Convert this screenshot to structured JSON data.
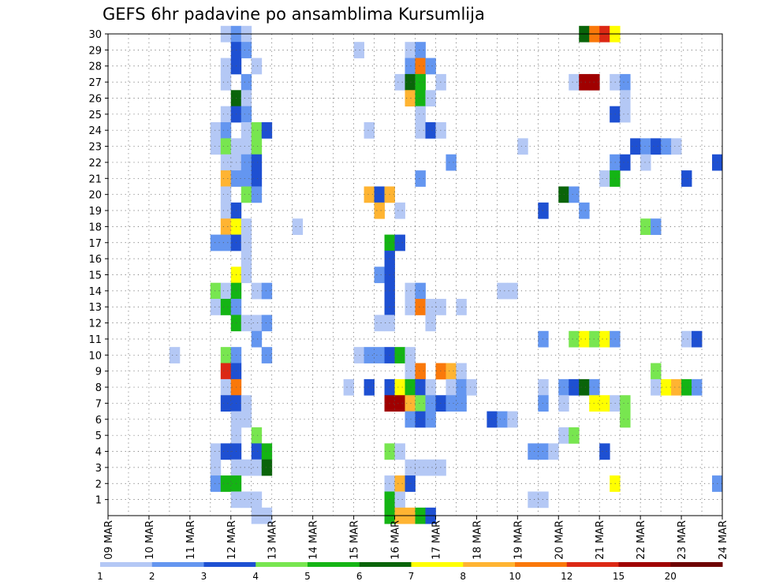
{
  "chart_data": {
    "type": "heatmap",
    "title": "GEFS 6hr padavine po ansamblima Kursumlija",
    "x_tick_labels": [
      "09 MAR",
      "10 MAR",
      "11 MAR",
      "12 MAR",
      "13 MAR",
      "14 MAR",
      "15 MAR",
      "16 MAR",
      "17 MAR",
      "18 MAR",
      "19 MAR",
      "20 MAR",
      "21 MAR",
      "22 MAR",
      "23 MAR",
      "24 MAR"
    ],
    "y_tick_labels": [
      "1",
      "2",
      "3",
      "4",
      "5",
      "6",
      "7",
      "8",
      "9",
      "10",
      "11",
      "12",
      "13",
      "14",
      "15",
      "16",
      "17",
      "18",
      "19",
      "20",
      "21",
      "22",
      "23",
      "24",
      "25",
      "26",
      "27",
      "28",
      "29",
      "30"
    ],
    "x_range_days": [
      0,
      15
    ],
    "steps_per_day": 4,
    "y_range": [
      0,
      30
    ],
    "grid": true,
    "legend_position": "bottom",
    "legend_labels": [
      "1",
      "2",
      "3",
      "4",
      "5",
      "6",
      "7",
      "8",
      "10",
      "12",
      "15",
      "20"
    ],
    "legend_colors": [
      "#b4c8f5",
      "#6496f0",
      "#1e50d2",
      "#78e650",
      "#14b414",
      "#0a640a",
      "#ffff00",
      "#ffb432",
      "#fa780a",
      "#dc2814",
      "#a00000",
      "#6e0000"
    ],
    "cells": [
      [
        30,
        2.75,
        0
      ],
      [
        30,
        3.0,
        1
      ],
      [
        30,
        3.25,
        0
      ],
      [
        30,
        11.5,
        5
      ],
      [
        30,
        11.75,
        8
      ],
      [
        30,
        12.0,
        9
      ],
      [
        30,
        12.25,
        6
      ],
      [
        29,
        3.0,
        2
      ],
      [
        29,
        3.25,
        1
      ],
      [
        29,
        6.0,
        0
      ],
      [
        29,
        7.25,
        0
      ],
      [
        29,
        7.5,
        1
      ],
      [
        28,
        2.75,
        0
      ],
      [
        28,
        3.0,
        2
      ],
      [
        28,
        3.5,
        0
      ],
      [
        28,
        7.25,
        1
      ],
      [
        28,
        7.5,
        8
      ],
      [
        28,
        7.75,
        1
      ],
      [
        27,
        2.75,
        0
      ],
      [
        27,
        3.25,
        1
      ],
      [
        27,
        7.0,
        0
      ],
      [
        27,
        7.25,
        5
      ],
      [
        27,
        7.5,
        4
      ],
      [
        27,
        8.0,
        0
      ],
      [
        27,
        11.25,
        0
      ],
      [
        27,
        11.5,
        10
      ],
      [
        27,
        11.75,
        10
      ],
      [
        27,
        12.25,
        0
      ],
      [
        27,
        12.5,
        1
      ],
      [
        26,
        3.0,
        5
      ],
      [
        26,
        3.25,
        0
      ],
      [
        26,
        7.25,
        7
      ],
      [
        26,
        7.5,
        4
      ],
      [
        26,
        7.75,
        0
      ],
      [
        26,
        12.5,
        0
      ],
      [
        25,
        2.75,
        0
      ],
      [
        25,
        3.0,
        2
      ],
      [
        25,
        3.25,
        1
      ],
      [
        25,
        7.5,
        0
      ],
      [
        25,
        12.25,
        2
      ],
      [
        25,
        12.5,
        0
      ],
      [
        24,
        2.5,
        0
      ],
      [
        24,
        2.75,
        1
      ],
      [
        24,
        3.25,
        0
      ],
      [
        24,
        3.5,
        3
      ],
      [
        24,
        3.75,
        2
      ],
      [
        24,
        6.25,
        0
      ],
      [
        24,
        7.5,
        0
      ],
      [
        24,
        7.75,
        2
      ],
      [
        24,
        8.0,
        0
      ],
      [
        23,
        2.5,
        0
      ],
      [
        23,
        2.75,
        3
      ],
      [
        23,
        3.0,
        0
      ],
      [
        23,
        3.25,
        0
      ],
      [
        23,
        3.5,
        3
      ],
      [
        23,
        10.0,
        0
      ],
      [
        23,
        12.75,
        2
      ],
      [
        23,
        13.0,
        1
      ],
      [
        23,
        13.25,
        2
      ],
      [
        23,
        13.5,
        1
      ],
      [
        23,
        13.75,
        0
      ],
      [
        22,
        2.75,
        0
      ],
      [
        22,
        3.0,
        0
      ],
      [
        22,
        3.25,
        1
      ],
      [
        22,
        3.5,
        2
      ],
      [
        22,
        8.25,
        1
      ],
      [
        22,
        12.25,
        1
      ],
      [
        22,
        12.5,
        2
      ],
      [
        22,
        13.0,
        0
      ],
      [
        22,
        14.75,
        2
      ],
      [
        21,
        2.75,
        7
      ],
      [
        21,
        3.0,
        1
      ],
      [
        21,
        3.25,
        1
      ],
      [
        21,
        3.5,
        2
      ],
      [
        21,
        7.5,
        1
      ],
      [
        21,
        12.0,
        0
      ],
      [
        21,
        12.25,
        4
      ],
      [
        21,
        14.0,
        2
      ],
      [
        20,
        2.75,
        0
      ],
      [
        20,
        3.25,
        3
      ],
      [
        20,
        3.5,
        1
      ],
      [
        20,
        6.25,
        7
      ],
      [
        20,
        6.5,
        2
      ],
      [
        20,
        6.75,
        7
      ],
      [
        20,
        11.0,
        5
      ],
      [
        20,
        11.25,
        1
      ],
      [
        19,
        2.75,
        0
      ],
      [
        19,
        3.0,
        2
      ],
      [
        19,
        6.5,
        7
      ],
      [
        19,
        7.0,
        0
      ],
      [
        19,
        10.5,
        2
      ],
      [
        19,
        11.5,
        1
      ],
      [
        18,
        2.75,
        7
      ],
      [
        18,
        3.0,
        6
      ],
      [
        18,
        3.25,
        0
      ],
      [
        18,
        4.5,
        0
      ],
      [
        18,
        13.0,
        3
      ],
      [
        18,
        13.25,
        1
      ],
      [
        17,
        2.5,
        1
      ],
      [
        17,
        2.75,
        1
      ],
      [
        17,
        3.0,
        2
      ],
      [
        17,
        3.25,
        0
      ],
      [
        17,
        6.75,
        4
      ],
      [
        17,
        7.0,
        2
      ],
      [
        16,
        3.25,
        0
      ],
      [
        16,
        6.75,
        2
      ],
      [
        15,
        3.0,
        6
      ],
      [
        15,
        3.25,
        0
      ],
      [
        15,
        6.5,
        1
      ],
      [
        15,
        6.75,
        2
      ],
      [
        14,
        2.5,
        3
      ],
      [
        14,
        2.75,
        0
      ],
      [
        14,
        3.0,
        4
      ],
      [
        14,
        3.5,
        0
      ],
      [
        14,
        3.75,
        1
      ],
      [
        14,
        6.75,
        2
      ],
      [
        14,
        7.25,
        0
      ],
      [
        14,
        7.5,
        1
      ],
      [
        14,
        9.5,
        0
      ],
      [
        14,
        9.75,
        0
      ],
      [
        13,
        2.5,
        0
      ],
      [
        13,
        2.75,
        4
      ],
      [
        13,
        3.0,
        1
      ],
      [
        13,
        6.75,
        2
      ],
      [
        13,
        7.25,
        0
      ],
      [
        13,
        7.5,
        8
      ],
      [
        13,
        7.75,
        0
      ],
      [
        13,
        8.0,
        0
      ],
      [
        13,
        8.5,
        0
      ],
      [
        12,
        3.0,
        4
      ],
      [
        12,
        3.25,
        0
      ],
      [
        12,
        3.5,
        0
      ],
      [
        12,
        3.75,
        1
      ],
      [
        12,
        6.5,
        0
      ],
      [
        12,
        6.75,
        0
      ],
      [
        12,
        7.75,
        0
      ],
      [
        11,
        3.5,
        1
      ],
      [
        11,
        10.5,
        1
      ],
      [
        11,
        11.25,
        3
      ],
      [
        11,
        11.5,
        6
      ],
      [
        11,
        11.75,
        3
      ],
      [
        11,
        12.0,
        6
      ],
      [
        11,
        12.25,
        1
      ],
      [
        11,
        14.0,
        0
      ],
      [
        11,
        14.25,
        2
      ],
      [
        10,
        1.5,
        0
      ],
      [
        10,
        2.75,
        3
      ],
      [
        10,
        3.0,
        1
      ],
      [
        10,
        3.75,
        1
      ],
      [
        10,
        6.0,
        0
      ],
      [
        10,
        6.25,
        1
      ],
      [
        10,
        6.5,
        1
      ],
      [
        10,
        6.75,
        2
      ],
      [
        10,
        7.0,
        4
      ],
      [
        10,
        7.25,
        0
      ],
      [
        9,
        2.75,
        9
      ],
      [
        9,
        3.0,
        2
      ],
      [
        9,
        7.25,
        0
      ],
      [
        9,
        7.5,
        8
      ],
      [
        9,
        8.0,
        8
      ],
      [
        9,
        8.25,
        7
      ],
      [
        9,
        8.5,
        0
      ],
      [
        9,
        13.25,
        3
      ],
      [
        8,
        2.75,
        0
      ],
      [
        8,
        3.0,
        8
      ],
      [
        8,
        5.75,
        0
      ],
      [
        8,
        6.25,
        2
      ],
      [
        8,
        6.75,
        2
      ],
      [
        8,
        7.0,
        6
      ],
      [
        8,
        7.25,
        4
      ],
      [
        8,
        7.5,
        2
      ],
      [
        8,
        7.75,
        0
      ],
      [
        8,
        8.25,
        0
      ],
      [
        8,
        8.5,
        1
      ],
      [
        8,
        8.75,
        0
      ],
      [
        8,
        10.5,
        0
      ],
      [
        8,
        11.0,
        1
      ],
      [
        8,
        11.25,
        2
      ],
      [
        8,
        11.5,
        5
      ],
      [
        8,
        11.75,
        1
      ],
      [
        8,
        13.25,
        0
      ],
      [
        8,
        13.5,
        6
      ],
      [
        8,
        13.75,
        7
      ],
      [
        8,
        14.0,
        4
      ],
      [
        8,
        14.25,
        1
      ],
      [
        7,
        2.75,
        2
      ],
      [
        7,
        3.0,
        2
      ],
      [
        7,
        3.25,
        0
      ],
      [
        7,
        6.75,
        10
      ],
      [
        7,
        7.0,
        10
      ],
      [
        7,
        7.25,
        7
      ],
      [
        7,
        7.5,
        3
      ],
      [
        7,
        7.75,
        1
      ],
      [
        7,
        8.0,
        2
      ],
      [
        7,
        8.25,
        1
      ],
      [
        7,
        8.5,
        1
      ],
      [
        7,
        10.5,
        1
      ],
      [
        7,
        11.0,
        0
      ],
      [
        7,
        11.75,
        6
      ],
      [
        7,
        12.0,
        6
      ],
      [
        7,
        12.25,
        0
      ],
      [
        7,
        12.5,
        3
      ],
      [
        6,
        3.0,
        0
      ],
      [
        6,
        3.25,
        0
      ],
      [
        6,
        7.25,
        1
      ],
      [
        6,
        7.5,
        2
      ],
      [
        6,
        7.75,
        1
      ],
      [
        6,
        9.25,
        2
      ],
      [
        6,
        9.5,
        1
      ],
      [
        6,
        9.75,
        0
      ],
      [
        6,
        12.5,
        3
      ],
      [
        5,
        3.0,
        0
      ],
      [
        5,
        3.5,
        3
      ],
      [
        5,
        11.0,
        0
      ],
      [
        5,
        11.25,
        3
      ],
      [
        4,
        2.5,
        0
      ],
      [
        4,
        2.75,
        2
      ],
      [
        4,
        3.0,
        2
      ],
      [
        4,
        3.5,
        2
      ],
      [
        4,
        3.75,
        4
      ],
      [
        4,
        6.75,
        3
      ],
      [
        4,
        7.0,
        0
      ],
      [
        4,
        10.25,
        1
      ],
      [
        4,
        10.5,
        1
      ],
      [
        4,
        10.75,
        0
      ],
      [
        4,
        12.0,
        2
      ],
      [
        3,
        2.5,
        0
      ],
      [
        3,
        3.0,
        0
      ],
      [
        3,
        3.25,
        0
      ],
      [
        3,
        3.5,
        0
      ],
      [
        3,
        3.75,
        5
      ],
      [
        3,
        7.25,
        0
      ],
      [
        3,
        7.5,
        0
      ],
      [
        3,
        7.75,
        0
      ],
      [
        3,
        8.0,
        0
      ],
      [
        2,
        2.5,
        1
      ],
      [
        2,
        2.75,
        4
      ],
      [
        2,
        3.0,
        4
      ],
      [
        2,
        6.75,
        0
      ],
      [
        2,
        7.0,
        7
      ],
      [
        2,
        7.25,
        2
      ],
      [
        2,
        12.25,
        6
      ],
      [
        2,
        14.75,
        1
      ],
      [
        1,
        3.0,
        0
      ],
      [
        1,
        3.25,
        0
      ],
      [
        1,
        3.5,
        0
      ],
      [
        1,
        6.75,
        4
      ],
      [
        1,
        7.0,
        0
      ],
      [
        1,
        10.25,
        0
      ],
      [
        1,
        10.5,
        0
      ],
      [
        0,
        3.5,
        0
      ],
      [
        0,
        3.75,
        0
      ],
      [
        0,
        6.75,
        4
      ],
      [
        0,
        7.0,
        7
      ],
      [
        0,
        7.25,
        7
      ],
      [
        0,
        7.5,
        4
      ],
      [
        0,
        7.75,
        2
      ]
    ]
  }
}
